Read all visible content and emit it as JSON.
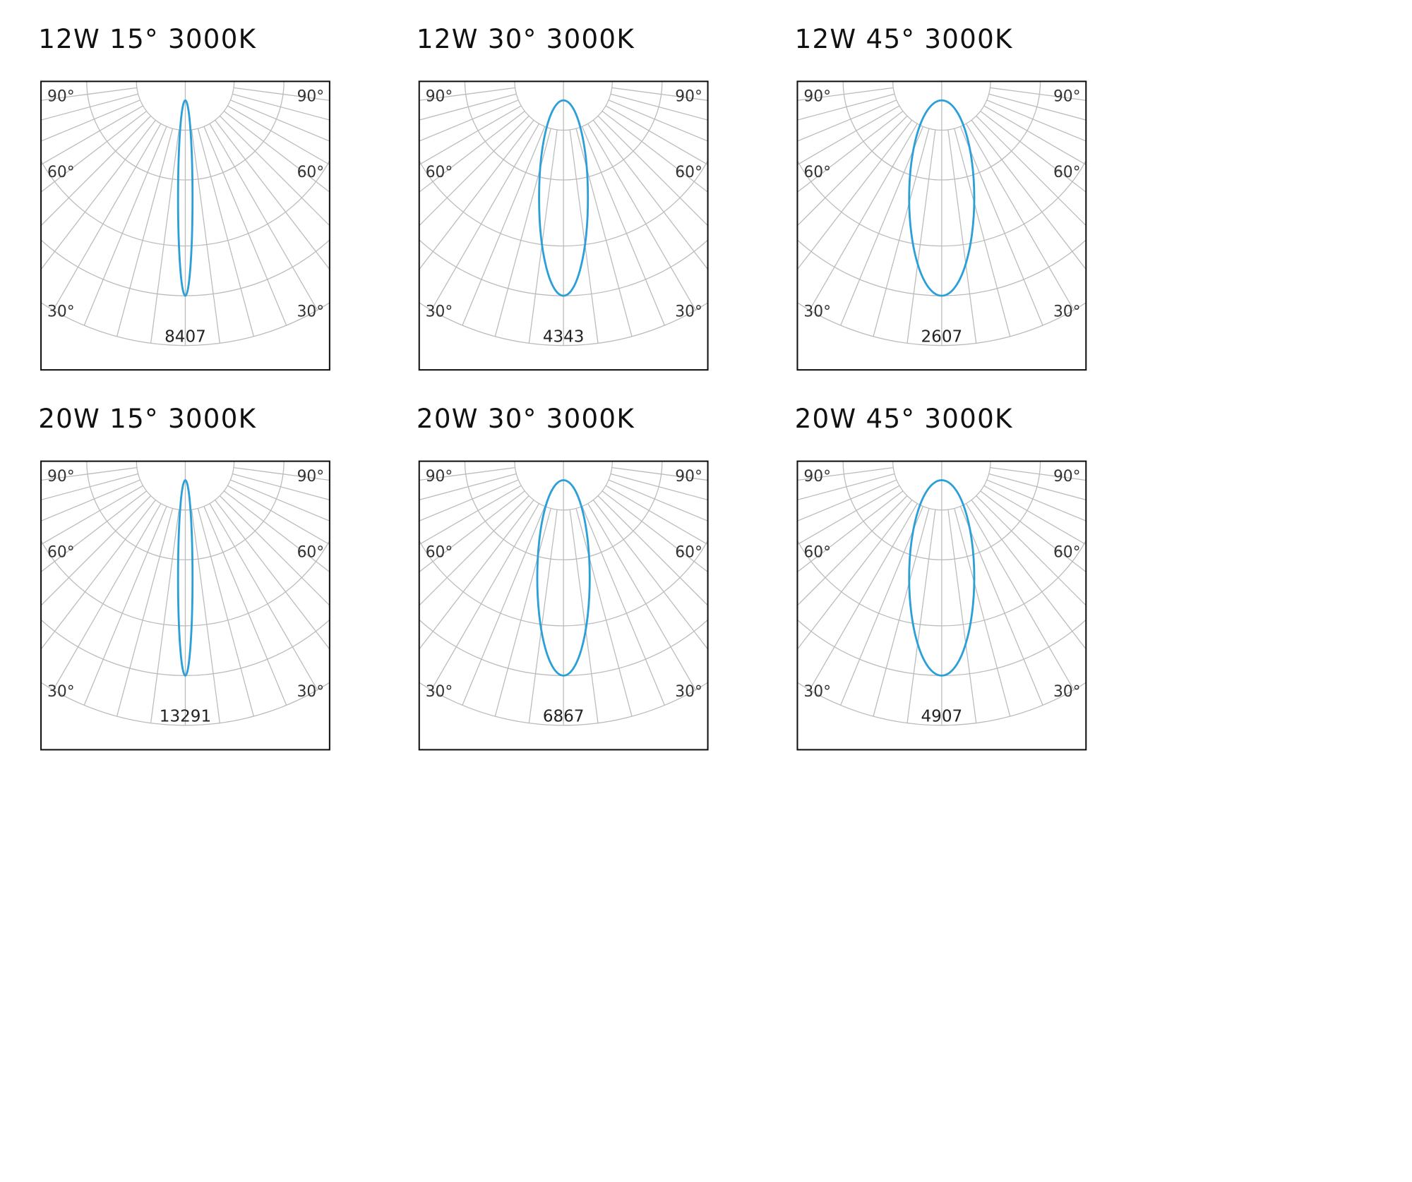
{
  "angle_labels": [
    "90°",
    "60°",
    "30°"
  ],
  "panels": [
    {
      "title": "12W 15°  3000K",
      "peak": "8407"
    },
    {
      "title": "12W 30°  3000K",
      "peak": "4343"
    },
    {
      "title": "12W 45°  3000K",
      "peak": "2607"
    },
    {
      "title": "20W 15°  3000K",
      "peak": "13291"
    },
    {
      "title": "20W 30°  3000K",
      "peak": "6867"
    },
    {
      "title": "20W 45°  3000K",
      "peak": "4907"
    }
  ]
}
